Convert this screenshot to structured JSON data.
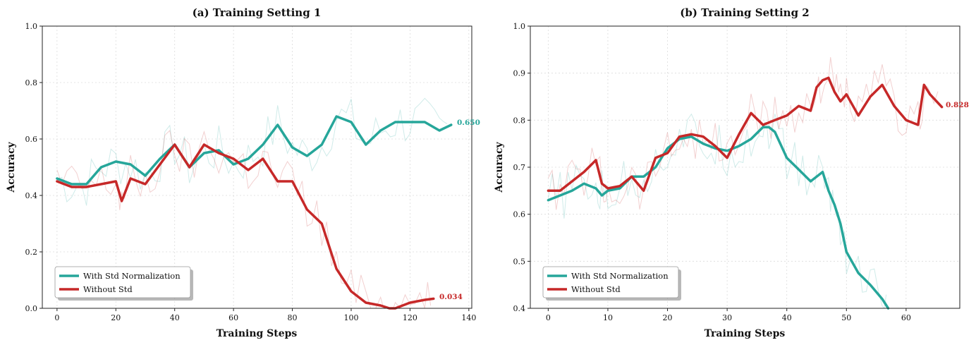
{
  "colors": {
    "teal": "#26a69a",
    "red": "#c62828"
  },
  "chart_data": [
    {
      "type": "line",
      "title": "(a) Training Setting 1",
      "xlabel": "Training Steps",
      "ylabel": "Accuracy",
      "xlim": [
        -5,
        141
      ],
      "ylim": [
        0.0,
        1.0
      ],
      "xticks": [
        0,
        20,
        40,
        60,
        80,
        100,
        120,
        140
      ],
      "yticks": [
        0.0,
        0.2,
        0.4,
        0.6,
        0.8,
        1.0
      ],
      "xtick_labels": [
        "0",
        "20",
        "40",
        "60",
        "80",
        "100",
        "120",
        "140"
      ],
      "ytick_labels": [
        "0.0",
        "0.2",
        "0.4",
        "0.6",
        "0.8",
        "1.0"
      ],
      "legend_position": "lower-left",
      "series": [
        {
          "name": "With Std Normalization",
          "color": "#26a69a",
          "end_label": "0.650",
          "x": [
            0,
            5,
            10,
            15,
            20,
            25,
            30,
            35,
            40,
            45,
            50,
            55,
            60,
            65,
            70,
            75,
            80,
            85,
            90,
            95,
            100,
            105,
            110,
            115,
            120,
            125,
            130,
            134
          ],
          "values": [
            0.46,
            0.44,
            0.44,
            0.5,
            0.52,
            0.51,
            0.47,
            0.53,
            0.58,
            0.5,
            0.55,
            0.56,
            0.51,
            0.53,
            0.58,
            0.65,
            0.57,
            0.54,
            0.58,
            0.68,
            0.66,
            0.58,
            0.63,
            0.66,
            0.66,
            0.66,
            0.63,
            0.65
          ]
        },
        {
          "name": "Without Std",
          "color": "#c62828",
          "end_label": "0.034",
          "x": [
            0,
            5,
            10,
            15,
            20,
            22,
            25,
            30,
            35,
            40,
            45,
            50,
            55,
            60,
            65,
            70,
            75,
            80,
            85,
            90,
            95,
            100,
            105,
            110,
            113,
            115,
            120,
            125,
            128
          ],
          "values": [
            0.45,
            0.43,
            0.43,
            0.44,
            0.45,
            0.38,
            0.46,
            0.44,
            0.51,
            0.58,
            0.5,
            0.58,
            0.55,
            0.53,
            0.49,
            0.53,
            0.45,
            0.45,
            0.35,
            0.3,
            0.14,
            0.06,
            0.02,
            0.01,
            0.0,
            0.0,
            0.02,
            0.03,
            0.034
          ]
        }
      ]
    },
    {
      "type": "line",
      "title": "(b) Training Setting 2",
      "xlabel": "Training Steps",
      "ylabel": "Accuracy",
      "xlim": [
        -3,
        69
      ],
      "ylim": [
        0.4,
        1.0
      ],
      "xticks": [
        0,
        10,
        20,
        30,
        40,
        50,
        60
      ],
      "yticks": [
        0.4,
        0.5,
        0.6,
        0.7,
        0.8,
        0.9,
        1.0
      ],
      "xtick_labels": [
        "0",
        "10",
        "20",
        "30",
        "40",
        "50",
        "60"
      ],
      "ytick_labels": [
        "0.4",
        "0.5",
        "0.6",
        "0.7",
        "0.8",
        "0.9",
        "1.0"
      ],
      "legend_position": "lower-left",
      "series": [
        {
          "name": "With Std Normalization",
          "color": "#26a69a",
          "end_label": "",
          "x": [
            0,
            2,
            4,
            6,
            8,
            9,
            10,
            12,
            14,
            16,
            18,
            20,
            22,
            24,
            26,
            28,
            30,
            32,
            34,
            36,
            37,
            38,
            40,
            42,
            44,
            46,
            47,
            48,
            49,
            50,
            52,
            54,
            56,
            57
          ],
          "values": [
            0.63,
            0.64,
            0.65,
            0.665,
            0.655,
            0.64,
            0.65,
            0.655,
            0.68,
            0.68,
            0.7,
            0.74,
            0.76,
            0.765,
            0.75,
            0.74,
            0.735,
            0.745,
            0.76,
            0.785,
            0.785,
            0.775,
            0.72,
            0.695,
            0.67,
            0.69,
            0.65,
            0.62,
            0.58,
            0.52,
            0.475,
            0.45,
            0.42,
            0.395
          ]
        },
        {
          "name": "Without Std",
          "color": "#c62828",
          "end_label": "0.828",
          "x": [
            0,
            2,
            4,
            6,
            8,
            9,
            10,
            12,
            14,
            16,
            18,
            20,
            22,
            24,
            26,
            28,
            30,
            32,
            34,
            36,
            38,
            40,
            42,
            44,
            45,
            46,
            47,
            48,
            49,
            50,
            52,
            54,
            56,
            58,
            60,
            62,
            63,
            64,
            66
          ],
          "values": [
            0.65,
            0.65,
            0.67,
            0.69,
            0.715,
            0.665,
            0.655,
            0.66,
            0.68,
            0.65,
            0.72,
            0.73,
            0.765,
            0.77,
            0.765,
            0.745,
            0.72,
            0.77,
            0.815,
            0.79,
            0.8,
            0.81,
            0.83,
            0.82,
            0.87,
            0.885,
            0.89,
            0.86,
            0.84,
            0.855,
            0.81,
            0.85,
            0.875,
            0.83,
            0.8,
            0.79,
            0.875,
            0.855,
            0.828
          ]
        }
      ]
    }
  ]
}
